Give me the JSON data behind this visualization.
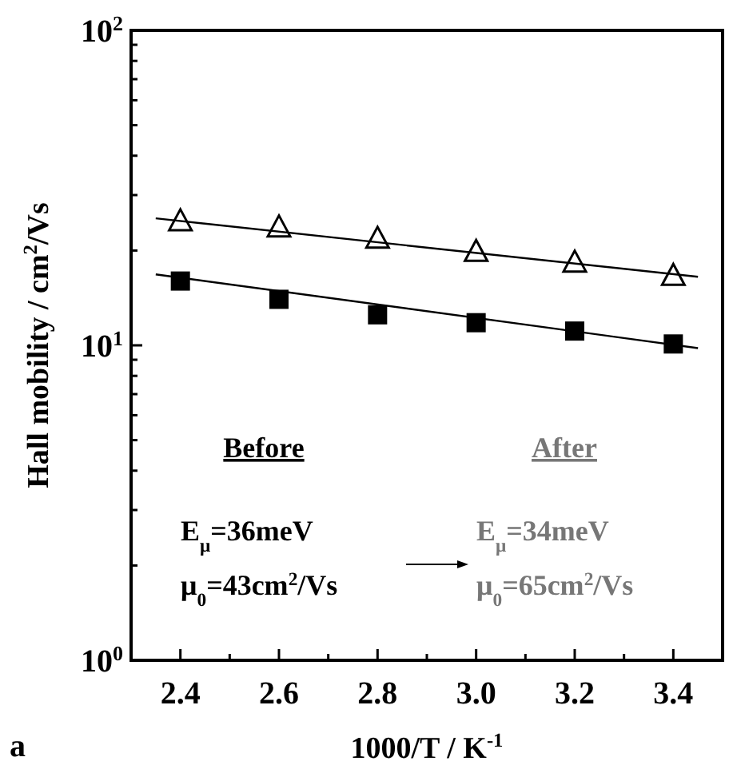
{
  "chart_data": {
    "type": "scatter",
    "xlabel": "1000/T / K$^{-1}$",
    "ylabel": "Hall mobility / cm$^{2}$/Vs",
    "log": "y",
    "grid": false,
    "xlim": [
      2.3,
      3.5
    ],
    "ylim": [
      1,
      100
    ],
    "xticks": [
      {
        "value": 2.4,
        "label": "2.4"
      },
      {
        "value": 2.5,
        "label": null
      },
      {
        "value": 2.6,
        "label": "2.6"
      },
      {
        "value": 2.7,
        "label": null
      },
      {
        "value": 2.8,
        "label": "2.8"
      },
      {
        "value": 2.9,
        "label": null
      },
      {
        "value": 3,
        "label": "3.0"
      },
      {
        "value": 3.1,
        "label": null
      },
      {
        "value": 3.2,
        "label": "3.2"
      },
      {
        "value": 3.3,
        "label": null
      },
      {
        "value": 3.4,
        "label": "3.4"
      }
    ],
    "yticks": [
      {
        "value": 1,
        "label": "10$^{0}$"
      },
      {
        "value": 2,
        "label": null
      },
      {
        "value": 3,
        "label": null
      },
      {
        "value": 4,
        "label": null
      },
      {
        "value": 5,
        "label": null
      },
      {
        "value": 6,
        "label": null
      },
      {
        "value": 7,
        "label": null
      },
      {
        "value": 8,
        "label": null
      },
      {
        "value": 9,
        "label": null
      },
      {
        "value": 10,
        "label": "10$^{1}$"
      },
      {
        "value": 20,
        "label": null
      },
      {
        "value": 30,
        "label": null
      },
      {
        "value": 40,
        "label": null
      },
      {
        "value": 50,
        "label": null
      },
      {
        "value": 60,
        "label": null
      },
      {
        "value": 70,
        "label": null
      },
      {
        "value": 80,
        "label": null
      },
      {
        "value": 90,
        "label": null
      },
      {
        "value": 100,
        "label": "10$^{2}$"
      }
    ],
    "series": [
      {
        "marker": "triangle",
        "color": "#000000",
        "x": [
          2.4,
          2.6,
          2.8,
          3.0,
          3.2,
          3.4
        ],
        "values": [
          24.9,
          23.8,
          21.9,
          19.9,
          18.4,
          16.7
        ]
      },
      {
        "marker": "square",
        "color": "#000000",
        "x": [
          2.4,
          2.6,
          2.8,
          3.0,
          3.2,
          3.4
        ],
        "values": [
          16.0,
          14.0,
          12.5,
          11.8,
          11.1,
          10.1
        ]
      },
      {
        "type": "line",
        "marker": "none",
        "line_style": "solid",
        "color": "#000000",
        "x": [
          2.35,
          3.45
        ],
        "values": [
          25.3,
          16.5
        ]
      },
      {
        "type": "line",
        "marker": "none",
        "line_style": "solid",
        "color": "#000000",
        "x": [
          2.35,
          3.45
        ],
        "values": [
          16.8,
          9.8
        ]
      }
    ],
    "annotations": [
      "Before",
      "E$_{μ}$=36meV",
      "μ$_{0}$=43cm$^{2}$/Vs",
      "After",
      "E$_{μ}$=34meV",
      "μ$_{0}$=65cm$^{2}$/Vs",
      "a"
    ]
  }
}
